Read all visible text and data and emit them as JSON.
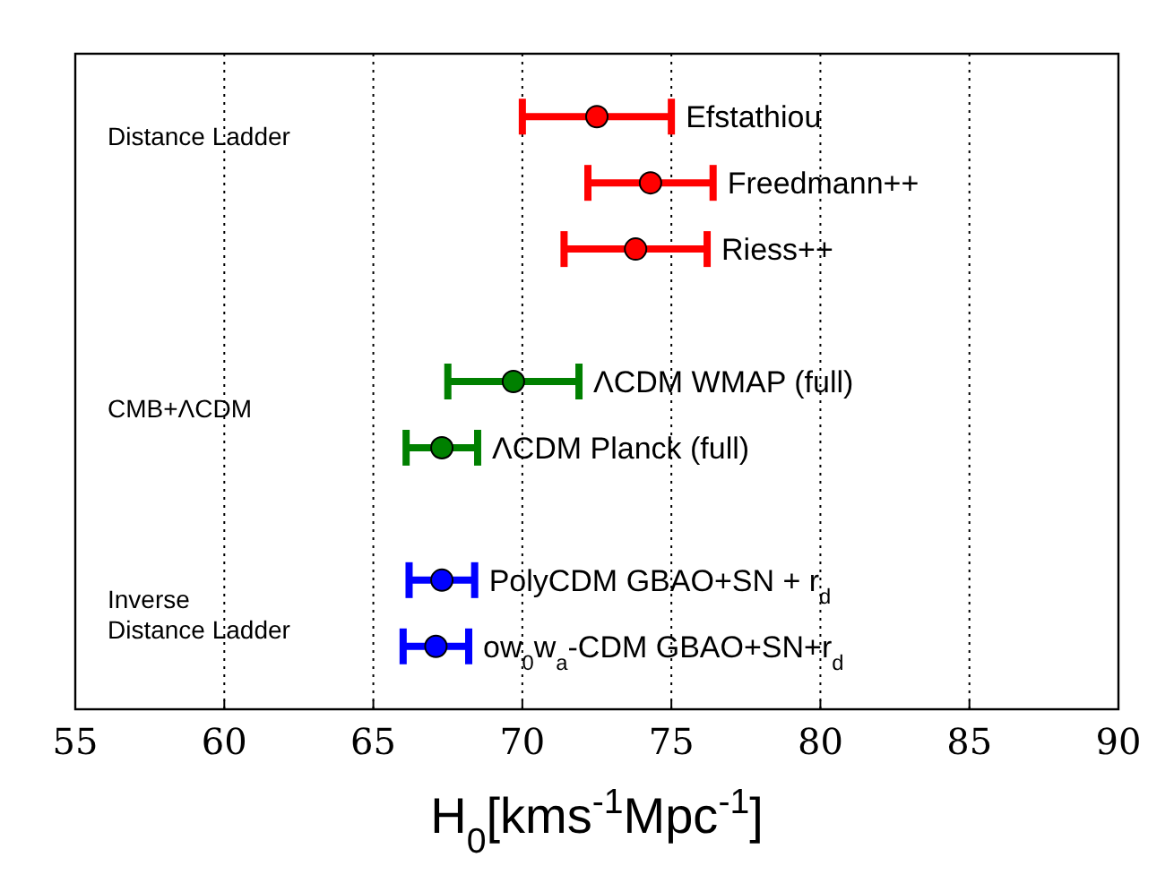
{
  "chart_data": {
    "type": "scatter",
    "orientation": "horizontal",
    "categories": [
      null,
      null,
      null,
      null,
      null,
      null,
      null,
      null,
      null
    ],
    "series": [
      {
        "name": "Efstathiou",
        "color": "#ff0000",
        "values": [
          72.5,
          null,
          null,
          null,
          null,
          null,
          null,
          null,
          null
        ],
        "errors": [
          2.5,
          null,
          null,
          null,
          null,
          null,
          null,
          null,
          null
        ]
      },
      {
        "name": "Freedmann++",
        "color": "#ff0000",
        "values": [
          null,
          74.3,
          null,
          null,
          null,
          null,
          null,
          null,
          null
        ],
        "errors": [
          null,
          2.1,
          null,
          null,
          null,
          null,
          null,
          null,
          null
        ]
      },
      {
        "name": "Riess++",
        "color": "#ff0000",
        "values": [
          null,
          null,
          73.8,
          null,
          null,
          null,
          null,
          null,
          null
        ],
        "errors": [
          null,
          null,
          2.4,
          null,
          null,
          null,
          null,
          null,
          null
        ]
      },
      {
        "name": "ΛCDM WMAP (full)",
        "color": "#008000",
        "values": [
          null,
          null,
          null,
          null,
          69.7,
          null,
          null,
          null,
          null
        ],
        "errors": [
          null,
          null,
          null,
          null,
          2.2,
          null,
          null,
          null,
          null
        ]
      },
      {
        "name": "ΛCDM Planck (full)",
        "color": "#008000",
        "values": [
          null,
          null,
          null,
          null,
          null,
          67.3,
          null,
          null,
          null
        ],
        "errors": [
          null,
          null,
          null,
          null,
          null,
          1.2,
          null,
          null,
          null
        ]
      },
      {
        "name": "PolyCDM GBAO+SN + r$_{d}$",
        "color": "#0000ff",
        "values": [
          null,
          null,
          null,
          null,
          null,
          null,
          null,
          67.3,
          null
        ],
        "errors": [
          null,
          null,
          null,
          null,
          null,
          null,
          null,
          1.1,
          null
        ]
      },
      {
        "name": "ow$_{0}$w$_{a}$-CDM GBAO+SN+r$_{d}$",
        "color": "#0000ff",
        "values": [
          null,
          null,
          null,
          null,
          null,
          null,
          null,
          null,
          67.1
        ],
        "errors": [
          null,
          null,
          null,
          null,
          null,
          null,
          null,
          null,
          1.1
        ]
      }
    ],
    "xlim": [
      55,
      90
    ],
    "xticks": [
      55,
      60,
      65,
      70,
      75,
      80,
      85,
      90
    ],
    "xlabel": "H$_{0}$[kms$^{-1}$Mpc$^{-1}$]",
    "annotations": [
      "Distance Ladder",
      "CMB+ΛCDM",
      "Inverse\nDistance Ladder"
    ],
    "grid": "x",
    "marker": "circle",
    "tick_labels": "x"
  }
}
